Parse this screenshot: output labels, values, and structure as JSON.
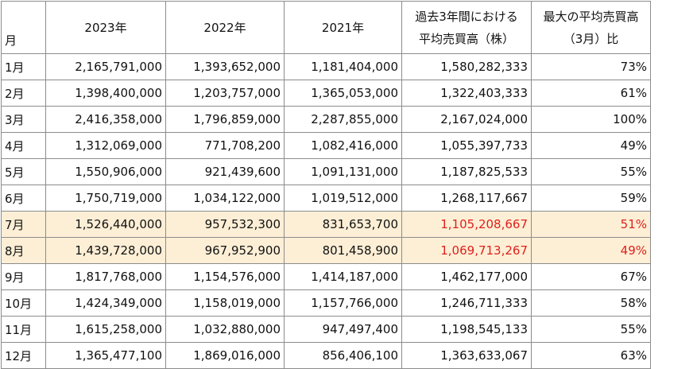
{
  "table": {
    "headers": [
      [
        "月"
      ],
      [
        "2023年"
      ],
      [
        "2022年"
      ],
      [
        "2021年"
      ],
      [
        "過去3年間における",
        "平均売買高（株）"
      ],
      [
        "最大の平均売買高",
        "（3月）比"
      ]
    ],
    "rows": [
      [
        "1月",
        "2,165,791,000",
        "1,393,652,000",
        "1,181,404,000",
        "1,580,282,333",
        "73%"
      ],
      [
        "2月",
        "1,398,400,000",
        "1,203,757,000",
        "1,365,053,000",
        "1,322,403,333",
        "61%"
      ],
      [
        "3月",
        "2,416,358,000",
        "1,796,859,000",
        "2,287,855,000",
        "2,167,024,000",
        "100%"
      ],
      [
        "4月",
        "1,312,069,000",
        "771,708,200",
        "1,082,416,000",
        "1,055,397,733",
        "49%"
      ],
      [
        "5月",
        "1,550,906,000",
        "921,439,600",
        "1,091,131,000",
        "1,187,825,533",
        "55%"
      ],
      [
        "6月",
        "1,750,719,000",
        "1,034,122,000",
        "1,019,512,000",
        "1,268,117,667",
        "59%"
      ],
      [
        "7月",
        "1,526,440,000",
        "957,532,300",
        "831,653,700",
        "1,105,208,667",
        "51%"
      ],
      [
        "8月",
        "1,439,728,000",
        "967,952,900",
        "801,458,900",
        "1,069,713,267",
        "49%"
      ],
      [
        "9月",
        "1,817,768,000",
        "1,154,576,000",
        "1,414,187,000",
        "1,462,177,000",
        "67%"
      ],
      [
        "10月",
        "1,424,349,000",
        "1,158,019,000",
        "1,157,766,000",
        "1,246,711,333",
        "58%"
      ],
      [
        "11月",
        "1,615,258,000",
        "1,032,880,000",
        "947,497,400",
        "1,198,545,133",
        "55%"
      ],
      [
        "12月",
        "1,365,477,100",
        "1,869,016,000",
        "856,406,100",
        "1,363,633,067",
        "63%"
      ]
    ]
  }
}
